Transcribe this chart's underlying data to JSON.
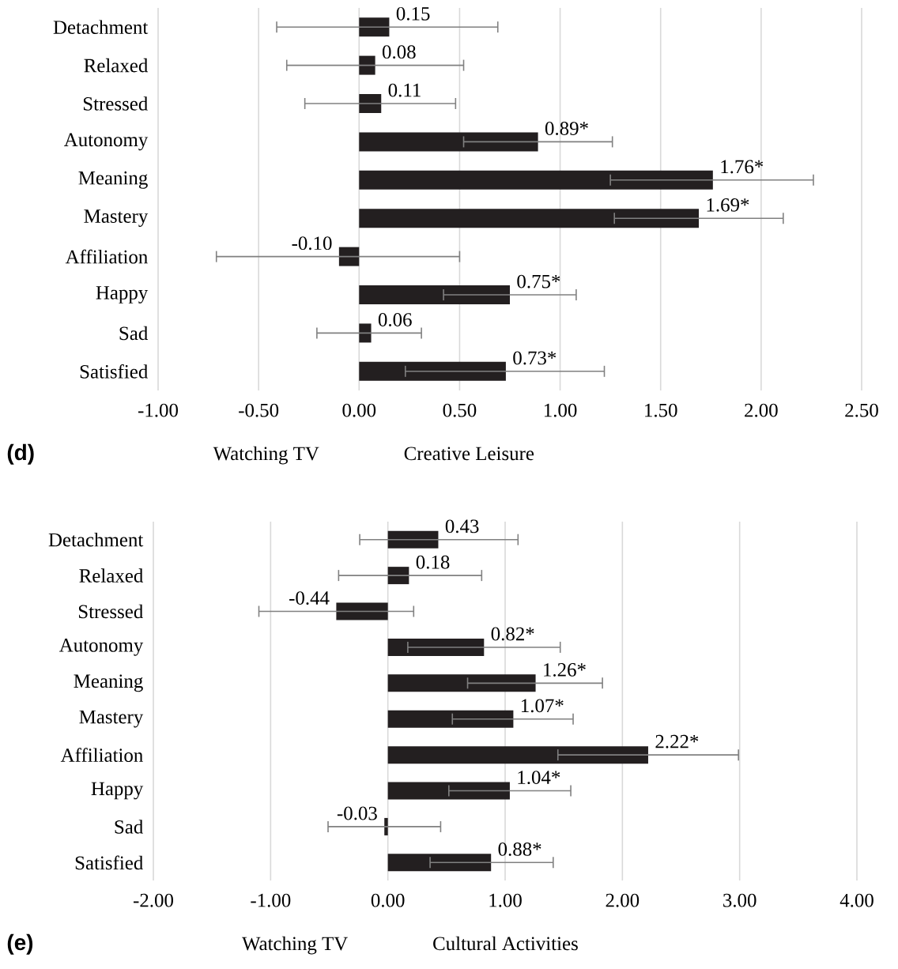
{
  "chart_data": [
    {
      "type": "bar",
      "orientation": "horizontal",
      "color": "#231f20",
      "grid": "x",
      "categories": [
        "Detachment",
        "Relaxed",
        "Stressed",
        "Autonomy",
        "Meaning",
        "Mastery",
        "Affiliation",
        "Happy",
        "Sad",
        "Satisfied"
      ],
      "values": [
        0.15,
        0.08,
        0.11,
        0.89,
        1.76,
        1.69,
        -0.1,
        0.75,
        0.06,
        0.73
      ],
      "errors": [
        [
          -0.41,
          0.69
        ],
        [
          -0.36,
          0.52
        ],
        [
          -0.27,
          0.48
        ],
        [
          0.52,
          1.26
        ],
        [
          1.25,
          2.26
        ],
        [
          1.27,
          2.11
        ],
        [
          -0.71,
          0.5
        ],
        [
          0.42,
          1.08
        ],
        [
          -0.21,
          0.31
        ],
        [
          0.23,
          1.22
        ]
      ],
      "value_labels": [
        "0.15",
        "0.08",
        "0.11",
        "0.89*",
        "1.76*",
        "1.69*",
        "-0.10",
        "0.75*",
        "0.06",
        "0.73*"
      ],
      "xlim": [
        -1.0,
        2.5
      ],
      "xticks": [
        {
          "value": -1.0,
          "label": "-1.00"
        },
        {
          "value": -0.5,
          "label": "-0.50"
        },
        {
          "value": 0,
          "label": "0.00"
        },
        {
          "value": 0.5,
          "label": "0.50"
        },
        {
          "value": 1.0,
          "label": "1.00"
        },
        {
          "value": 1.5,
          "label": "1.50"
        },
        {
          "value": 2.0,
          "label": "2.00"
        },
        {
          "value": 2.5,
          "label": "2.50"
        }
      ],
      "annotations": [
        "(d)",
        "Watching TV",
        "Creative Leisure"
      ]
    },
    {
      "type": "bar",
      "orientation": "horizontal",
      "color": "#231f20",
      "grid": "x",
      "categories": [
        "Detachment",
        "Relaxed",
        "Stressed",
        "Autonomy",
        "Meaning",
        "Mastery",
        "Affiliation",
        "Happy",
        "Sad",
        "Satisfied"
      ],
      "values": [
        0.43,
        0.18,
        -0.44,
        0.82,
        1.26,
        1.07,
        2.22,
        1.04,
        -0.03,
        0.88
      ],
      "errors": [
        [
          -0.24,
          1.11
        ],
        [
          -0.42,
          0.8
        ],
        [
          -1.1,
          0.22
        ],
        [
          0.17,
          1.47
        ],
        [
          0.68,
          1.83
        ],
        [
          0.55,
          1.58
        ],
        [
          1.45,
          2.99
        ],
        [
          0.52,
          1.56
        ],
        [
          -0.51,
          0.45
        ],
        [
          0.36,
          1.41
        ]
      ],
      "value_labels": [
        "0.43",
        "0.18",
        "-0.44",
        "0.82*",
        "1.26*",
        "1.07*",
        "2.22*",
        "1.04*",
        "-0.03",
        "0.88*"
      ],
      "xlim": [
        -2.0,
        4.0
      ],
      "xticks": [
        {
          "value": -2.0,
          "label": "-2.00"
        },
        {
          "value": -1.0,
          "label": "-1.00"
        },
        {
          "value": 0,
          "label": "0.00"
        },
        {
          "value": 1.0,
          "label": "1.00"
        },
        {
          "value": 2.0,
          "label": "2.00"
        },
        {
          "value": 3.0,
          "label": "3.00"
        },
        {
          "value": 4.0,
          "label": "4.00"
        }
      ],
      "annotations": [
        "(e)",
        "Watching TV",
        "Cultural Activities"
      ]
    }
  ]
}
